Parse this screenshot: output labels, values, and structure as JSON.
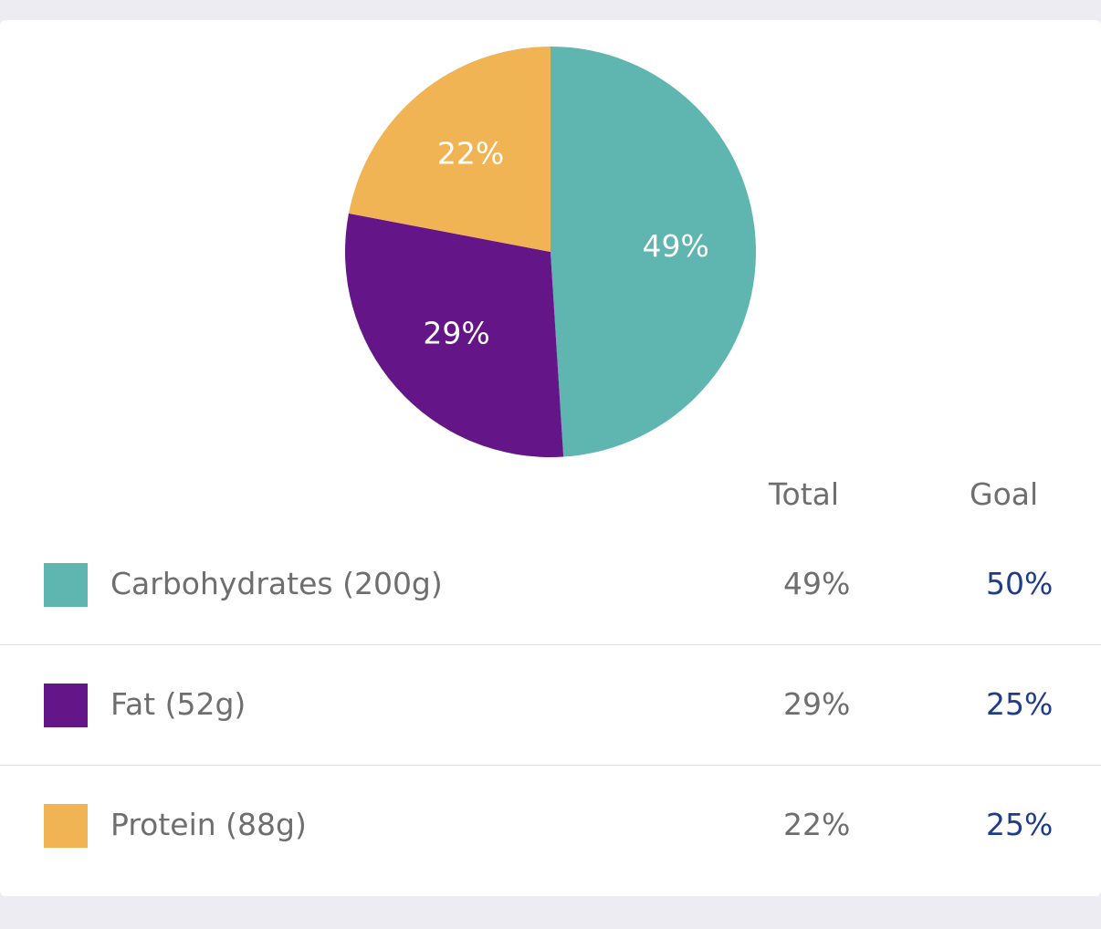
{
  "chart_data": {
    "type": "pie",
    "slices": [
      {
        "name": "Carbohydrates",
        "value": 49,
        "label": "49%",
        "color": "#5fb5b0"
      },
      {
        "name": "Fat",
        "value": 29,
        "label": "29%",
        "color": "#641688"
      },
      {
        "name": "Protein",
        "value": 22,
        "label": "22%",
        "color": "#f0b454"
      }
    ]
  },
  "table": {
    "headers": {
      "total": "Total",
      "goal": "Goal"
    },
    "rows": [
      {
        "label": "Carbohydrates (200g)",
        "total": "49%",
        "goal": "50%",
        "color": "#5fb5b0"
      },
      {
        "label": "Fat (52g)",
        "total": "29%",
        "goal": "25%",
        "color": "#641688"
      },
      {
        "label": "Protein (88g)",
        "total": "22%",
        "goal": "25%",
        "color": "#f0b454"
      }
    ]
  },
  "colors": {
    "background": "#ececf2",
    "card": "#ffffff",
    "label_text": "#6e6e6e",
    "goal_text": "#1f3c88"
  }
}
